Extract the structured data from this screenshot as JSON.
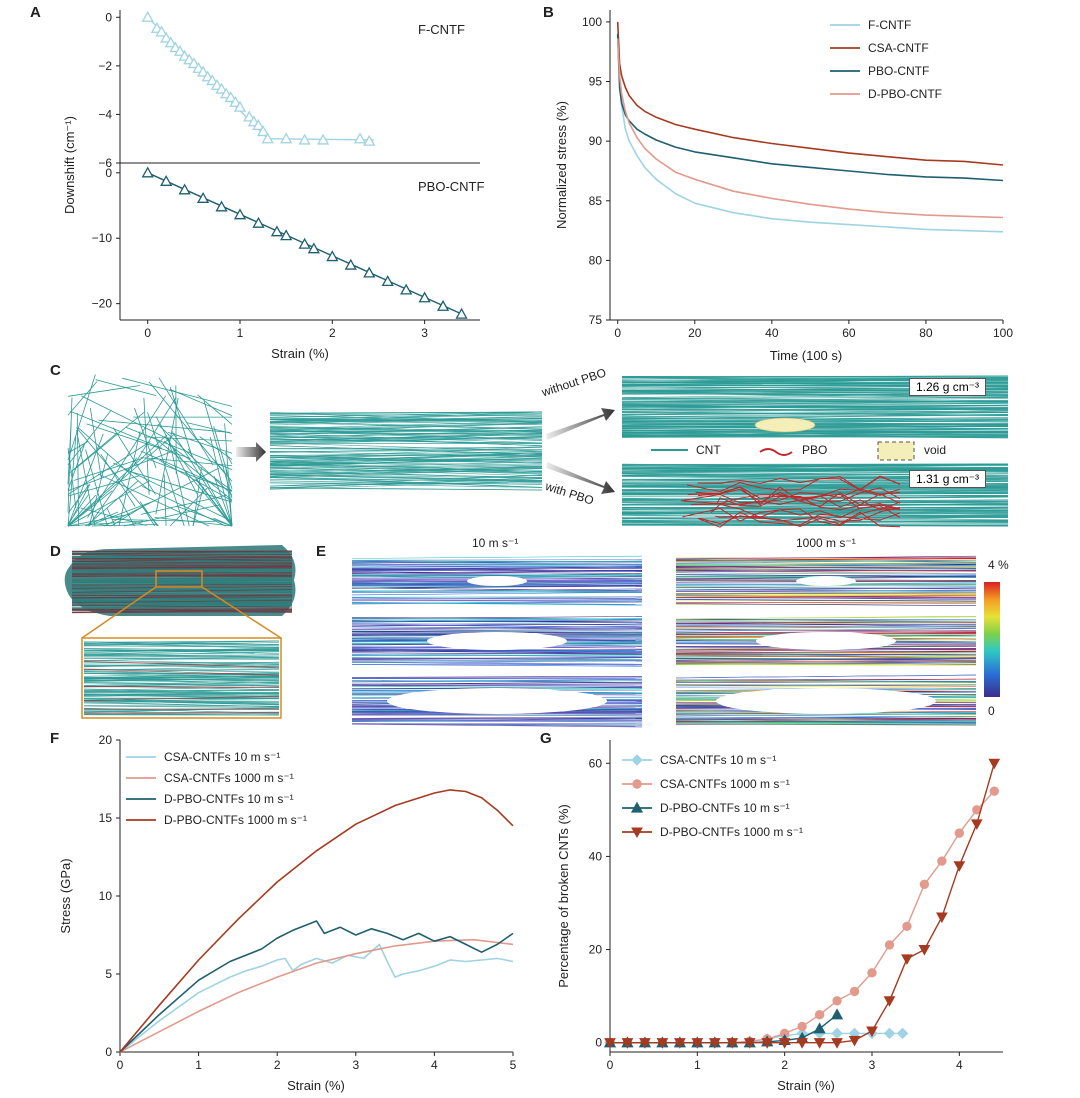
{
  "colors": {
    "fcntf": "#9fd3e3",
    "csa": "#e29a8c",
    "pbo": "#1e5f70",
    "dpbo": "#a63a20",
    "cnt": "#2b9a95",
    "pbo_fiber": "#c0282a",
    "void": "#f4efb8",
    "orange": "#d58b22"
  },
  "panels": {
    "A": {
      "label": "A",
      "ylabel": "Downshift (cm⁻¹)",
      "xlabel": "Strain (%)",
      "top_tag": "F-CNTF",
      "bottom_tag": "PBO-CNTF"
    },
    "B": {
      "label": "B"
    },
    "C": {
      "label": "C",
      "without": "without PBO",
      "with": "with PBO",
      "density_top": "1.26 g cm⁻³",
      "density_bottom": "1.31 g cm⁻³",
      "legend": {
        "cnt": "CNT",
        "pbo": "PBO",
        "void": "void"
      }
    },
    "D": {
      "label": "D"
    },
    "E": {
      "label": "E",
      "col1": "10 m s⁻¹",
      "col2": "1000 m s⁻¹",
      "scale_max": "4 %",
      "scale_min": "0"
    },
    "F": {
      "label": "F"
    },
    "G": {
      "label": "G"
    }
  },
  "chart_data": [
    {
      "panel": "A-top",
      "type": "line",
      "ylabel": "Downshift (cm⁻¹)",
      "ylim": [
        -6,
        0.3
      ],
      "xlim": [
        -0.3,
        3.6
      ],
      "yticks": [
        0,
        -2,
        -4,
        -6
      ],
      "series": [
        {
          "name": "F-CNTF",
          "marker": "triangle-open",
          "x": [
            0,
            0.1,
            0.15,
            0.2,
            0.25,
            0.3,
            0.35,
            0.4,
            0.45,
            0.5,
            0.55,
            0.6,
            0.65,
            0.7,
            0.75,
            0.8,
            0.85,
            0.9,
            0.95,
            1.0,
            1.1,
            1.15,
            1.2,
            1.25,
            1.3,
            1.5,
            1.7,
            1.9,
            2.3,
            2.4
          ],
          "y": [
            0,
            -0.45,
            -0.6,
            -0.85,
            -1.05,
            -1.25,
            -1.4,
            -1.6,
            -1.75,
            -1.9,
            -2.1,
            -2.25,
            -2.45,
            -2.6,
            -2.8,
            -2.95,
            -3.15,
            -3.3,
            -3.5,
            -3.7,
            -4.1,
            -4.3,
            -4.45,
            -4.7,
            -5.0,
            -5.0,
            -5.05,
            -5.05,
            -5.0,
            -5.1
          ]
        }
      ]
    },
    {
      "panel": "A-bottom",
      "type": "line",
      "xlabel": "Strain (%)",
      "ylim": [
        -22.5,
        1.5
      ],
      "xlim": [
        -0.3,
        3.6
      ],
      "yticks": [
        0,
        -10,
        -20
      ],
      "xticks": [
        0,
        1,
        2,
        3
      ],
      "series": [
        {
          "name": "PBO-CNTF",
          "marker": "triangle-open",
          "x": [
            0,
            0.2,
            0.4,
            0.6,
            0.8,
            1.0,
            1.2,
            1.4,
            1.5,
            1.7,
            1.8,
            2.0,
            2.2,
            2.4,
            2.6,
            2.8,
            3.0,
            3.2,
            3.4
          ],
          "y": [
            0,
            -1.3,
            -2.6,
            -3.9,
            -5.2,
            -6.4,
            -7.7,
            -9.0,
            -9.6,
            -10.9,
            -11.6,
            -12.8,
            -14.1,
            -15.3,
            -16.6,
            -17.9,
            -19.1,
            -20.4,
            -21.6
          ]
        }
      ]
    },
    {
      "panel": "B",
      "type": "line",
      "xlabel": "Time (100 s)",
      "ylabel": "Normalized stress (%)",
      "xlim": [
        -2,
        100
      ],
      "ylim": [
        75,
        101
      ],
      "xticks": [
        0,
        20,
        40,
        60,
        80,
        100
      ],
      "yticks": [
        75,
        80,
        85,
        90,
        95,
        100
      ],
      "legend_position": "top-right",
      "series": [
        {
          "name": "F-CNTF",
          "color_key": "fcntf",
          "x": [
            0,
            0.5,
            1,
            2,
            3,
            5,
            7,
            10,
            15,
            20,
            30,
            40,
            50,
            60,
            70,
            80,
            90,
            100
          ],
          "y": [
            98.5,
            95,
            93,
            91,
            90,
            88.8,
            87.8,
            86.8,
            85.6,
            84.8,
            84.0,
            83.5,
            83.2,
            83.0,
            82.8,
            82.6,
            82.5,
            82.4
          ]
        },
        {
          "name": "CSA-CNTF",
          "color_key": "dpbo",
          "x": [
            0,
            0.5,
            1,
            2,
            3,
            5,
            7,
            10,
            15,
            20,
            30,
            40,
            50,
            60,
            70,
            80,
            90,
            100
          ],
          "y": [
            100,
            96.5,
            95.5,
            94.5,
            93.8,
            93.0,
            92.5,
            92.0,
            91.4,
            91.0,
            90.3,
            89.8,
            89.4,
            89.0,
            88.7,
            88.4,
            88.3,
            88.0
          ]
        },
        {
          "name": "PBO-CNTF",
          "color_key": "pbo",
          "x": [
            0,
            0.5,
            1,
            2,
            3,
            5,
            7,
            10,
            15,
            20,
            30,
            40,
            50,
            60,
            70,
            80,
            90,
            100
          ],
          "y": [
            99,
            94.5,
            93.2,
            92.2,
            91.7,
            91.0,
            90.6,
            90.1,
            89.5,
            89.1,
            88.6,
            88.1,
            87.8,
            87.5,
            87.2,
            87.0,
            86.9,
            86.7
          ]
        },
        {
          "name": "D-PBO-CNTF",
          "color_key": "csa",
          "x": [
            0,
            0.5,
            1,
            2,
            3,
            5,
            7,
            10,
            15,
            20,
            30,
            40,
            50,
            60,
            70,
            80,
            90,
            100
          ],
          "y": [
            98.6,
            95.5,
            94,
            92.5,
            91.5,
            90.3,
            89.4,
            88.5,
            87.4,
            86.8,
            85.8,
            85.2,
            84.7,
            84.3,
            84.0,
            83.8,
            83.7,
            83.6
          ]
        }
      ]
    },
    {
      "panel": "F",
      "type": "line",
      "xlabel": "Strain (%)",
      "ylabel": "Stress (GPa)",
      "xlim": [
        0,
        5
      ],
      "ylim": [
        0,
        20
      ],
      "xticks": [
        0,
        1,
        2,
        3,
        4,
        5
      ],
      "yticks": [
        0,
        5,
        10,
        15,
        20
      ],
      "legend_position": "top-left",
      "series": [
        {
          "name": "CSA-CNTFs 10 m s⁻¹",
          "color_key": "fcntf",
          "x": [
            0,
            0.5,
            1.0,
            1.4,
            1.6,
            1.8,
            2.0,
            2.1,
            2.2,
            2.3,
            2.5,
            2.7,
            2.9,
            3.1,
            3.3,
            3.4,
            3.5,
            3.6,
            3.8,
            4.0,
            4.2,
            4.4,
            4.6,
            4.8,
            5.0
          ],
          "y": [
            0,
            2.0,
            3.8,
            4.8,
            5.2,
            5.5,
            5.9,
            6.0,
            5.2,
            5.6,
            6.0,
            5.7,
            6.2,
            6.0,
            6.9,
            5.8,
            4.8,
            5.0,
            5.2,
            5.5,
            5.9,
            5.8,
            5.9,
            6.0,
            5.8
          ]
        },
        {
          "name": "CSA-CNTFs 1000 m s⁻¹",
          "color_key": "csa",
          "x": [
            0,
            0.5,
            1.0,
            1.5,
            2.0,
            2.5,
            3.0,
            3.5,
            4.0,
            4.5,
            5.0
          ],
          "y": [
            0,
            1.3,
            2.6,
            3.8,
            4.8,
            5.7,
            6.3,
            6.8,
            7.1,
            7.2,
            6.9
          ]
        },
        {
          "name": "D-PBO-CNTFs 10 m s⁻¹",
          "color_key": "pbo",
          "x": [
            0,
            0.5,
            1.0,
            1.4,
            1.8,
            2.0,
            2.2,
            2.4,
            2.5,
            2.6,
            2.8,
            3.0,
            3.2,
            3.4,
            3.6,
            3.8,
            4.0,
            4.2,
            4.4,
            4.6,
            4.8,
            5.0
          ],
          "y": [
            0,
            2.4,
            4.6,
            5.8,
            6.6,
            7.3,
            7.8,
            8.2,
            8.4,
            7.6,
            8.0,
            7.5,
            7.9,
            7.6,
            7.2,
            7.6,
            7.1,
            7.4,
            6.9,
            6.4,
            6.9,
            7.6
          ]
        },
        {
          "name": "D-PBO-CNTFs 1000 m s⁻¹",
          "color_key": "dpbo",
          "x": [
            0,
            0.5,
            1.0,
            1.5,
            2.0,
            2.5,
            3.0,
            3.5,
            4.0,
            4.2,
            4.4,
            4.6,
            4.8,
            5.0
          ],
          "y": [
            0,
            3.0,
            5.9,
            8.5,
            10.9,
            12.9,
            14.6,
            15.8,
            16.6,
            16.8,
            16.7,
            16.3,
            15.5,
            14.5
          ]
        }
      ]
    },
    {
      "panel": "G",
      "type": "line",
      "xlabel": "Strain (%)",
      "ylabel": "Percentage of broken CNTs (%)",
      "xlim": [
        0,
        4.5
      ],
      "ylim": [
        -2,
        65
      ],
      "xticks": [
        0,
        1,
        2,
        3,
        4
      ],
      "yticks": [
        0,
        20,
        40,
        60
      ],
      "legend_position": "top-left",
      "series": [
        {
          "name": "CSA-CNTFs 10 m s⁻¹",
          "color_key": "fcntf",
          "marker": "diamond",
          "x": [
            0,
            0.2,
            0.4,
            0.6,
            0.8,
            1.0,
            1.2,
            1.4,
            1.6,
            1.8,
            2.0,
            2.2,
            2.4,
            2.6,
            2.8,
            3.0,
            3.2,
            3.35
          ],
          "y": [
            0,
            0,
            0,
            0,
            0,
            0,
            0,
            0,
            0.3,
            0.8,
            1.5,
            2.0,
            2.0,
            2.0,
            2.0,
            2.0,
            2.0,
            2.0
          ]
        },
        {
          "name": "CSA-CNTFs 1000 m s⁻¹",
          "color_key": "csa",
          "marker": "circle",
          "x": [
            0,
            0.2,
            0.4,
            0.6,
            0.8,
            1.0,
            1.2,
            1.4,
            1.6,
            1.8,
            2.0,
            2.2,
            2.4,
            2.6,
            2.8,
            3.0,
            3.2,
            3.4,
            3.6,
            3.8,
            4.0,
            4.2,
            4.4
          ],
          "y": [
            0,
            0,
            0,
            0,
            0,
            0,
            0,
            0,
            0.3,
            0.8,
            2.0,
            3.5,
            6.0,
            9.0,
            11.0,
            15.0,
            21.0,
            25.0,
            34.0,
            39.0,
            45.0,
            50.0,
            54.0
          ]
        },
        {
          "name": "D-PBO-CNTFs 10 m s⁻¹",
          "color_key": "pbo",
          "marker": "triangle-up",
          "x": [
            0,
            0.2,
            0.4,
            0.6,
            0.8,
            1.0,
            1.2,
            1.4,
            1.6,
            1.8,
            2.0,
            2.2,
            2.4,
            2.6
          ],
          "y": [
            0,
            0,
            0,
            0,
            0,
            0,
            0,
            0,
            0,
            0.2,
            0.5,
            1.0,
            3.0,
            6.0
          ]
        },
        {
          "name": "D-PBO-CNTFs 1000 m s⁻¹",
          "color_key": "dpbo",
          "marker": "triangle-down",
          "x": [
            0,
            0.2,
            0.4,
            0.6,
            0.8,
            1.0,
            1.2,
            1.4,
            1.6,
            1.8,
            2.0,
            2.2,
            2.4,
            2.6,
            2.8,
            3.0,
            3.2,
            3.4,
            3.6,
            3.8,
            4.0,
            4.2,
            4.4
          ],
          "y": [
            0,
            0,
            0,
            0,
            0,
            0,
            0,
            0,
            0,
            0,
            0,
            0,
            0,
            0,
            0.5,
            2.5,
            9.0,
            18.0,
            20.0,
            27.0,
            38.0,
            47.0,
            60.0
          ]
        }
      ]
    }
  ]
}
